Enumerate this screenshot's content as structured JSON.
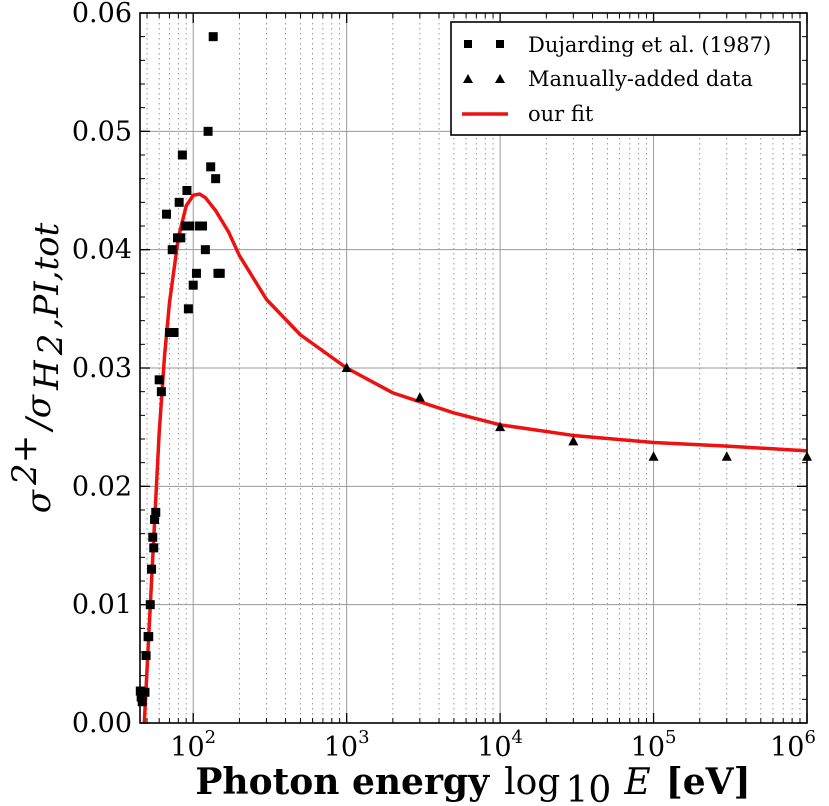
{
  "chart_data": {
    "type": "scatter",
    "x_scale": "log",
    "xlim": [
      45,
      1000000
    ],
    "ylim": [
      0,
      0.06
    ],
    "grid": true,
    "legend_position": "top-right",
    "xlabel": {
      "bold": "Photon energy",
      "math": "log",
      "math_sub": "10",
      "var": "E",
      "unit": "[eV]"
    },
    "ylabel": {
      "sigma": "σ",
      "sup": "2+",
      "slash": "/σ",
      "sub": "H",
      "sub2": "2",
      "sub_rest": ",PI,tot"
    },
    "y_ticks": [
      {
        "value": 0.0,
        "label": "0.00"
      },
      {
        "value": 0.01,
        "label": "0.01"
      },
      {
        "value": 0.02,
        "label": "0.02"
      },
      {
        "value": 0.03,
        "label": "0.03"
      },
      {
        "value": 0.04,
        "label": "0.04"
      },
      {
        "value": 0.05,
        "label": "0.05"
      },
      {
        "value": 0.06,
        "label": "0.06"
      }
    ],
    "x_ticks": [
      {
        "value": 100,
        "base": "10",
        "exp": "2"
      },
      {
        "value": 1000,
        "base": "10",
        "exp": "3"
      },
      {
        "value": 10000,
        "base": "10",
        "exp": "4"
      },
      {
        "value": 100000,
        "base": "10",
        "exp": "5"
      },
      {
        "value": 1000000,
        "base": "10",
        "exp": "6"
      }
    ],
    "series": [
      {
        "name": "Dujarding et al. (1987)",
        "marker": "square",
        "color": "#000000",
        "x": [
          45.2,
          45.8,
          46.5,
          48.5,
          49.3,
          50.8,
          51.3,
          52.5,
          53.5,
          54.5,
          55.3,
          56,
          57,
          60,
          62,
          67,
          70,
          73,
          75,
          79,
          81,
          83,
          85,
          89,
          91,
          93,
          95,
          100,
          105,
          110,
          115,
          120,
          125,
          130,
          135,
          140,
          145,
          150
        ],
        "y": [
          0.0027,
          0.0022,
          0.0018,
          0.0026,
          0.0057,
          0.0073,
          0.0073,
          0.01,
          0.013,
          0.0157,
          0.0148,
          0.0172,
          0.0178,
          0.029,
          0.028,
          0.043,
          0.033,
          0.04,
          0.033,
          0.041,
          0.044,
          0.041,
          0.048,
          0.042,
          0.045,
          0.035,
          0.042,
          0.037,
          0.038,
          0.042,
          0.042,
          0.04,
          0.05,
          0.047,
          0.058,
          0.046,
          0.038,
          0.038
        ]
      },
      {
        "name": "Manually-added data",
        "marker": "triangle",
        "color": "#000000",
        "x": [
          1000,
          3000,
          10000,
          30000,
          100000,
          300000,
          1000000
        ],
        "y": [
          0.03,
          0.0275,
          0.025,
          0.0238,
          0.0225,
          0.0225,
          0.0225
        ]
      },
      {
        "name": "our fit",
        "marker": "line",
        "color": "#ee1111",
        "x": [
          48,
          50,
          55,
          60,
          65,
          70,
          80,
          90,
          100,
          110,
          120,
          140,
          170,
          200,
          300,
          500,
          1000,
          2000,
          5000,
          10000,
          30000,
          100000,
          300000,
          1000000
        ],
        "y": [
          0.0,
          0.0045,
          0.015,
          0.0245,
          0.031,
          0.0355,
          0.041,
          0.0437,
          0.0446,
          0.0447,
          0.0444,
          0.0433,
          0.0415,
          0.0395,
          0.0358,
          0.0328,
          0.03,
          0.0279,
          0.0262,
          0.0252,
          0.0243,
          0.0237,
          0.0234,
          0.023
        ]
      }
    ]
  }
}
